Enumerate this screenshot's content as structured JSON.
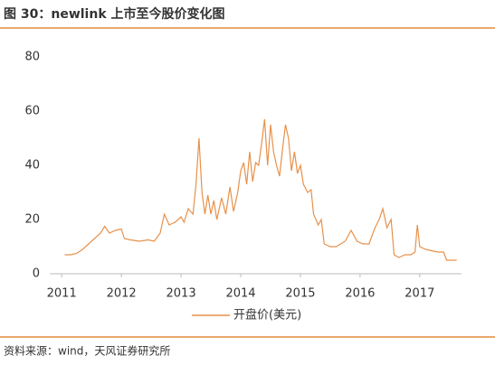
{
  "chart_data": {
    "type": "line",
    "title": "图 30：newlink 上市至今股价变化图",
    "source": "资料来源：wind，天风证券研究所",
    "x": [
      2011.05,
      2011.15,
      2011.25,
      2011.35,
      2011.45,
      2011.55,
      2011.65,
      2011.72,
      2011.8,
      2011.9,
      2012.0,
      2012.05,
      2012.15,
      2012.3,
      2012.45,
      2012.55,
      2012.65,
      2012.72,
      2012.8,
      2012.9,
      2013.0,
      2013.05,
      2013.12,
      2013.2,
      2013.25,
      2013.3,
      2013.35,
      2013.4,
      2013.45,
      2013.5,
      2013.55,
      2013.6,
      2013.68,
      2013.75,
      2013.82,
      2013.88,
      2013.95,
      2014.0,
      2014.05,
      2014.1,
      2014.15,
      2014.2,
      2014.25,
      2014.3,
      2014.35,
      2014.4,
      2014.45,
      2014.5,
      2014.55,
      2014.6,
      2014.65,
      2014.7,
      2014.75,
      2014.8,
      2014.85,
      2014.9,
      2014.95,
      2015.0,
      2015.05,
      2015.12,
      2015.18,
      2015.22,
      2015.3,
      2015.35,
      2015.4,
      2015.5,
      2015.6,
      2015.75,
      2015.85,
      2015.95,
      2016.05,
      2016.15,
      2016.25,
      2016.32,
      2016.38,
      2016.45,
      2016.52,
      2016.57,
      2016.65,
      2016.75,
      2016.85,
      2016.92,
      2016.96,
      2017.0,
      2017.1,
      2017.2,
      2017.3,
      2017.4,
      2017.45,
      2017.55,
      2017.62
    ],
    "series": [
      {
        "name": "开盘价(美元)",
        "color": "#e8914a",
        "values": [
          7,
          7,
          7.5,
          9,
          11,
          13,
          15,
          17.5,
          15,
          16,
          16.5,
          13,
          12.5,
          12,
          12.5,
          12,
          15,
          22,
          18,
          19,
          21,
          19,
          24,
          22,
          33,
          50,
          30,
          22,
          29,
          22,
          27,
          20,
          28,
          22,
          32,
          23,
          30,
          38,
          41,
          33,
          45,
          34,
          41,
          40,
          48,
          57,
          40,
          55,
          45,
          40,
          36,
          46,
          55,
          50,
          38,
          45,
          37,
          40,
          33,
          30,
          31,
          22,
          18,
          20,
          11,
          10,
          10,
          12,
          16,
          12,
          11,
          11,
          17,
          20,
          24,
          17,
          20,
          7,
          6,
          7,
          7,
          8,
          18,
          10,
          9,
          8.5,
          8,
          8,
          5,
          5,
          5
        ]
      }
    ],
    "xlim": [
      2010.8,
      2017.7
    ],
    "xticks": [
      2011,
      2012,
      2013,
      2014,
      2015,
      2016,
      2017
    ],
    "ylim": [
      0,
      80
    ],
    "yticks": [
      0,
      20,
      40,
      60,
      80
    ]
  }
}
